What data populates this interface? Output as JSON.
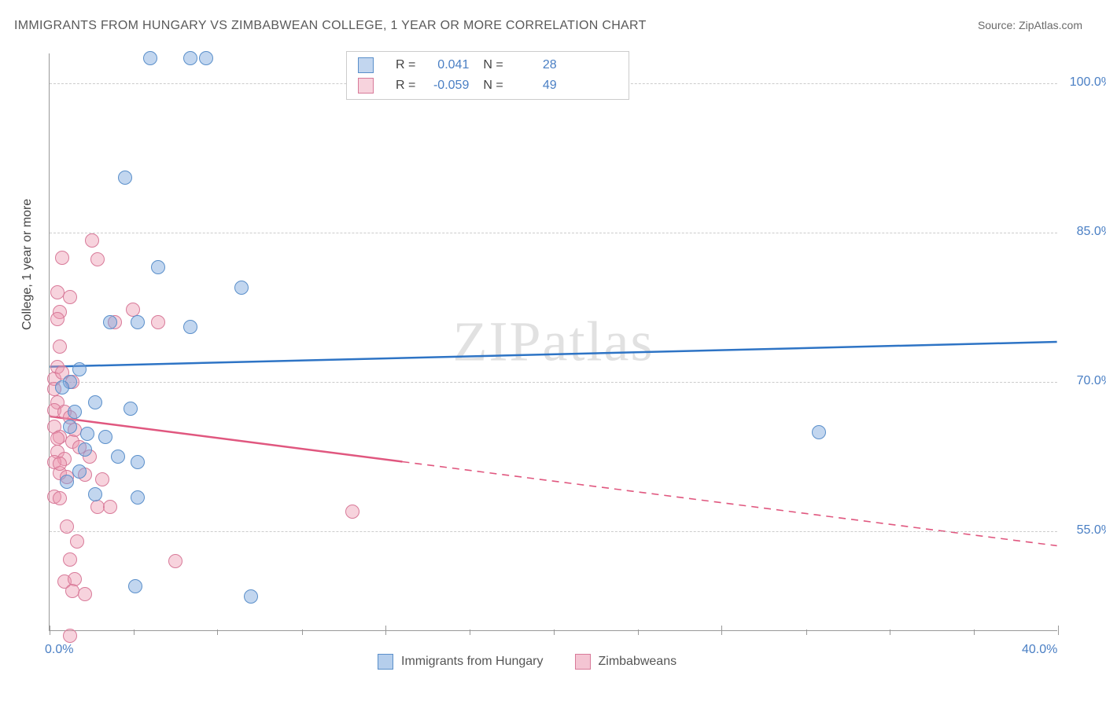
{
  "title": "IMMIGRANTS FROM HUNGARY VS ZIMBABWEAN COLLEGE, 1 YEAR OR MORE CORRELATION CHART",
  "source_prefix": "Source: ",
  "source": "ZipAtlas.com",
  "ylabel": "College, 1 year or more",
  "watermark": "ZIPatlas",
  "chart": {
    "type": "scatter-with-regression",
    "background": "#ffffff",
    "grid_color": "#cccccc",
    "axis_color": "#999999",
    "xlim": [
      0,
      40
    ],
    "ylim": [
      45,
      103
    ],
    "yticks": [
      {
        "val": 100,
        "label": "100.0%"
      },
      {
        "val": 85,
        "label": "85.0%"
      },
      {
        "val": 70,
        "label": "70.0%"
      },
      {
        "val": 55,
        "label": "55.0%"
      }
    ],
    "xticks_major": [
      0,
      13.33,
      26.66,
      40
    ],
    "xticks_minor": [
      3.33,
      6.66,
      10,
      16.66,
      20,
      23.33,
      30,
      33.33,
      36.66
    ],
    "xtick_labels": [
      {
        "val": 0,
        "label": "0.0%"
      },
      {
        "val": 40,
        "label": "40.0%"
      }
    ],
    "series": [
      {
        "name": "Immigrants from Hungary",
        "color_fill": "rgba(120,165,220,0.45)",
        "color_stroke": "#5a8fca",
        "line_color": "#2e74c5",
        "marker_radius": 9,
        "stats": {
          "R": "0.041",
          "N": "28"
        },
        "regression": {
          "x1": 0,
          "y1": 71.5,
          "x2": 40,
          "y2": 74.0,
          "solid_until": 40
        },
        "points": [
          [
            4.0,
            102.5
          ],
          [
            5.6,
            102.5
          ],
          [
            6.2,
            102.5
          ],
          [
            3.0,
            90.5
          ],
          [
            4.3,
            81.5
          ],
          [
            7.6,
            79.5
          ],
          [
            2.4,
            76.0
          ],
          [
            3.5,
            76.0
          ],
          [
            5.6,
            75.5
          ],
          [
            1.2,
            71.3
          ],
          [
            0.8,
            70.0
          ],
          [
            1.8,
            68.0
          ],
          [
            3.2,
            67.3
          ],
          [
            0.8,
            65.5
          ],
          [
            1.5,
            64.8
          ],
          [
            2.2,
            64.5
          ],
          [
            1.4,
            63.2
          ],
          [
            2.7,
            62.5
          ],
          [
            3.5,
            62.0
          ],
          [
            1.2,
            61.0
          ],
          [
            1.8,
            58.7
          ],
          [
            3.5,
            58.4
          ],
          [
            0.7,
            60.0
          ],
          [
            3.4,
            49.5
          ],
          [
            8.0,
            48.5
          ],
          [
            30.5,
            65.0
          ],
          [
            1.0,
            67.0
          ],
          [
            0.5,
            69.5
          ]
        ]
      },
      {
        "name": "Zimbabweans",
        "color_fill": "rgba(235,150,175,0.42)",
        "color_stroke": "#d87a99",
        "line_color": "#e0577f",
        "marker_radius": 9,
        "stats": {
          "R": "-0.059",
          "N": "49"
        },
        "regression": {
          "x1": 0,
          "y1": 66.5,
          "x2": 40,
          "y2": 53.5,
          "solid_until": 14
        },
        "points": [
          [
            1.7,
            84.2
          ],
          [
            0.5,
            82.5
          ],
          [
            1.9,
            82.3
          ],
          [
            0.3,
            79.0
          ],
          [
            0.8,
            78.5
          ],
          [
            0.4,
            77.0
          ],
          [
            0.3,
            76.3
          ],
          [
            2.6,
            76.0
          ],
          [
            4.3,
            76.0
          ],
          [
            0.4,
            73.6
          ],
          [
            0.3,
            71.5
          ],
          [
            0.2,
            70.3
          ],
          [
            0.9,
            70.0
          ],
          [
            0.2,
            69.3
          ],
          [
            3.3,
            77.3
          ],
          [
            0.3,
            68.0
          ],
          [
            0.2,
            67.2
          ],
          [
            0.6,
            67.0
          ],
          [
            0.8,
            66.5
          ],
          [
            0.2,
            65.5
          ],
          [
            1.0,
            65.2
          ],
          [
            0.4,
            64.5
          ],
          [
            0.9,
            64.0
          ],
          [
            1.2,
            63.5
          ],
          [
            0.3,
            63.0
          ],
          [
            0.6,
            62.3
          ],
          [
            1.6,
            62.5
          ],
          [
            0.2,
            62.0
          ],
          [
            0.4,
            60.9
          ],
          [
            0.7,
            60.5
          ],
          [
            1.4,
            60.7
          ],
          [
            2.1,
            60.2
          ],
          [
            0.2,
            58.5
          ],
          [
            0.4,
            58.3
          ],
          [
            1.9,
            57.5
          ],
          [
            2.4,
            57.5
          ],
          [
            0.7,
            55.5
          ],
          [
            1.1,
            54.0
          ],
          [
            0.8,
            52.2
          ],
          [
            5.0,
            52.0
          ],
          [
            12.0,
            57.0
          ],
          [
            0.6,
            50.0
          ],
          [
            1.0,
            50.2
          ],
          [
            0.9,
            49.0
          ],
          [
            1.4,
            48.7
          ],
          [
            0.8,
            44.5
          ],
          [
            0.4,
            61.8
          ],
          [
            0.3,
            64.3
          ],
          [
            0.5,
            71.0
          ]
        ]
      }
    ]
  },
  "legend_bottom": [
    {
      "swatch_fill": "rgba(120,165,220,0.55)",
      "swatch_stroke": "#5a8fca",
      "label": "Immigrants from Hungary"
    },
    {
      "swatch_fill": "rgba(235,150,175,0.55)",
      "swatch_stroke": "#d87a99",
      "label": "Zimbabweans"
    }
  ],
  "stats_label_r": "R  =",
  "stats_label_n": "N  ="
}
